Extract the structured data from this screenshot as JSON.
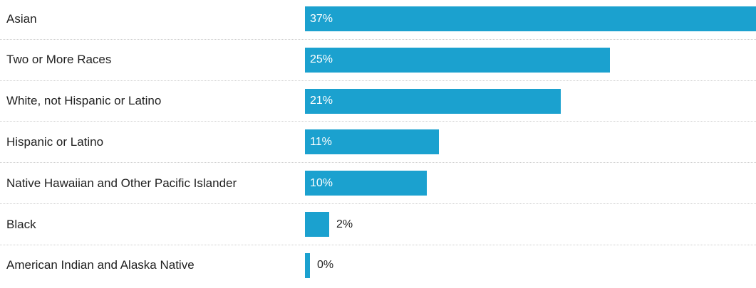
{
  "chart_data": {
    "type": "bar",
    "orientation": "horizontal",
    "categories": [
      "Asian",
      "Two or More Races",
      "White, not Hispanic or Latino",
      "Hispanic or Latino",
      "Native Hawaiian and Other Pacific Islander",
      "Black",
      "American Indian and Alaska Native"
    ],
    "values": [
      37,
      25,
      21,
      11,
      10,
      2,
      0
    ],
    "value_labels": [
      "37%",
      "25%",
      "21%",
      "11%",
      "10%",
      "2%",
      "0%"
    ],
    "bar_color": "#1ba1cf",
    "xlim": [
      0,
      37
    ],
    "title": "",
    "xlabel": "",
    "ylabel": "",
    "grid": false,
    "legend": "none"
  }
}
